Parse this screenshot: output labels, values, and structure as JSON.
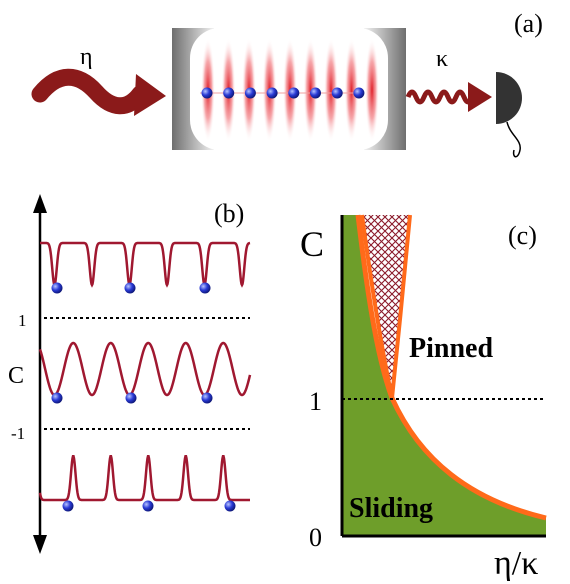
{
  "panel_a": {
    "label": "(a)",
    "pump_symbol": "η",
    "loss_symbol": "κ",
    "atom_count": 8,
    "colors": {
      "wave": "#8b1a1a",
      "mirror_dark": "#6e6e6e",
      "mirror_light": "#e8e8e8",
      "standing_wave": "#e0202a",
      "atom": "#2a3bd6",
      "detector": "#333333"
    },
    "icons": [
      "pump-wave-arrow-icon",
      "cavity-icon",
      "emission-wave-arrow-icon",
      "detector-icon"
    ]
  },
  "panel_b": {
    "label": "(b)",
    "axis_label": "C",
    "tick_upper": "1",
    "tick_lower": "-1",
    "curve_color": "#a01830",
    "rows": [
      {
        "name": "top",
        "shape": "narrow-wells"
      },
      {
        "name": "middle",
        "shape": "sinusoid"
      },
      {
        "name": "bottom",
        "shape": "narrow-peaks"
      }
    ]
  },
  "panel_c": {
    "label": "(c)",
    "y_axis_label": "C",
    "x_axis_label": "η/κ",
    "y_ticks": [
      "0",
      "1"
    ],
    "region_pinned": "Pinned",
    "region_sliding": "Sliding",
    "colors": {
      "sliding_fill": "#6e9e2a",
      "boundary": "#ff6a1a",
      "hatch": "#8b1a2a"
    }
  }
}
